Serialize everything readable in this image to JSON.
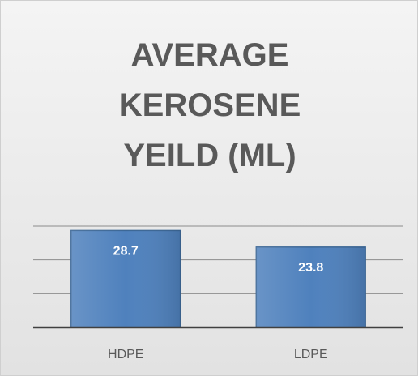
{
  "chart_data": {
    "type": "bar",
    "title": "AVERAGE KEROSENE YEILD (ML)",
    "categories": [
      "HDPE",
      "LDPE"
    ],
    "values": [
      28.7,
      23.8
    ],
    "color": "#4f81bd",
    "ylim": [
      0,
      30
    ],
    "yticks": [
      0,
      10,
      20,
      30
    ],
    "grid": true
  }
}
